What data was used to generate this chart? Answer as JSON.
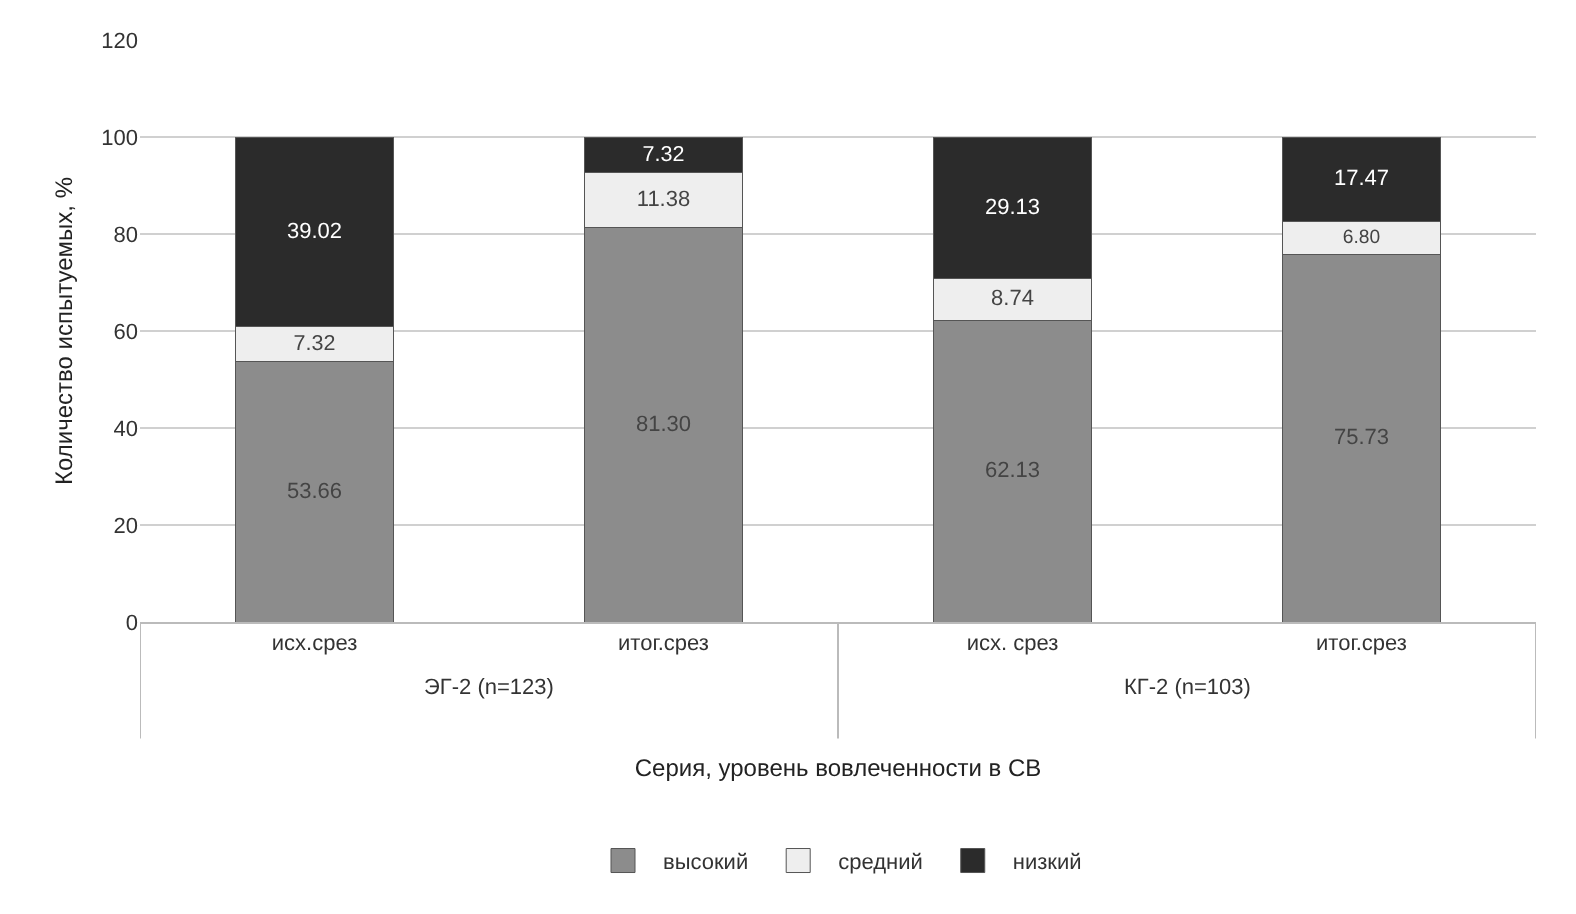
{
  "chart_data": {
    "type": "bar",
    "stacked": true,
    "ylabel": "Количество испытуемых, %",
    "xlabel": "Серия, уровень вовлеченности в СВ",
    "categories": [
      "исх.срез",
      "итог.срез",
      "исх. срез",
      "итог.срез"
    ],
    "series": [
      {
        "name": "высокий",
        "color": "#8c8c8c",
        "values": [
          53.66,
          81.3,
          62.13,
          75.73
        ],
        "value_labels": [
          "53.66",
          "81.30",
          "62.13",
          "75.73"
        ]
      },
      {
        "name": "средний",
        "color": "#eeeeee",
        "values": [
          7.32,
          11.38,
          8.74,
          6.8
        ],
        "value_labels": [
          "7.32",
          "11.38",
          "8.74",
          "6.80"
        ]
      },
      {
        "name": "низкий",
        "color": "#2b2b2b",
        "values": [
          39.02,
          7.32,
          29.13,
          17.47
        ],
        "value_labels": [
          "39.02",
          "7.32",
          "29.13",
          "17.47"
        ]
      }
    ],
    "annotations": [
      "ЭГ-2 (n=123)",
      "КГ-2 (n=103)"
    ],
    "ylim": [
      0,
      120
    ],
    "yticks": [
      0,
      20,
      40,
      60,
      80,
      100,
      120
    ],
    "grid": "y",
    "legend": "bottom"
  }
}
